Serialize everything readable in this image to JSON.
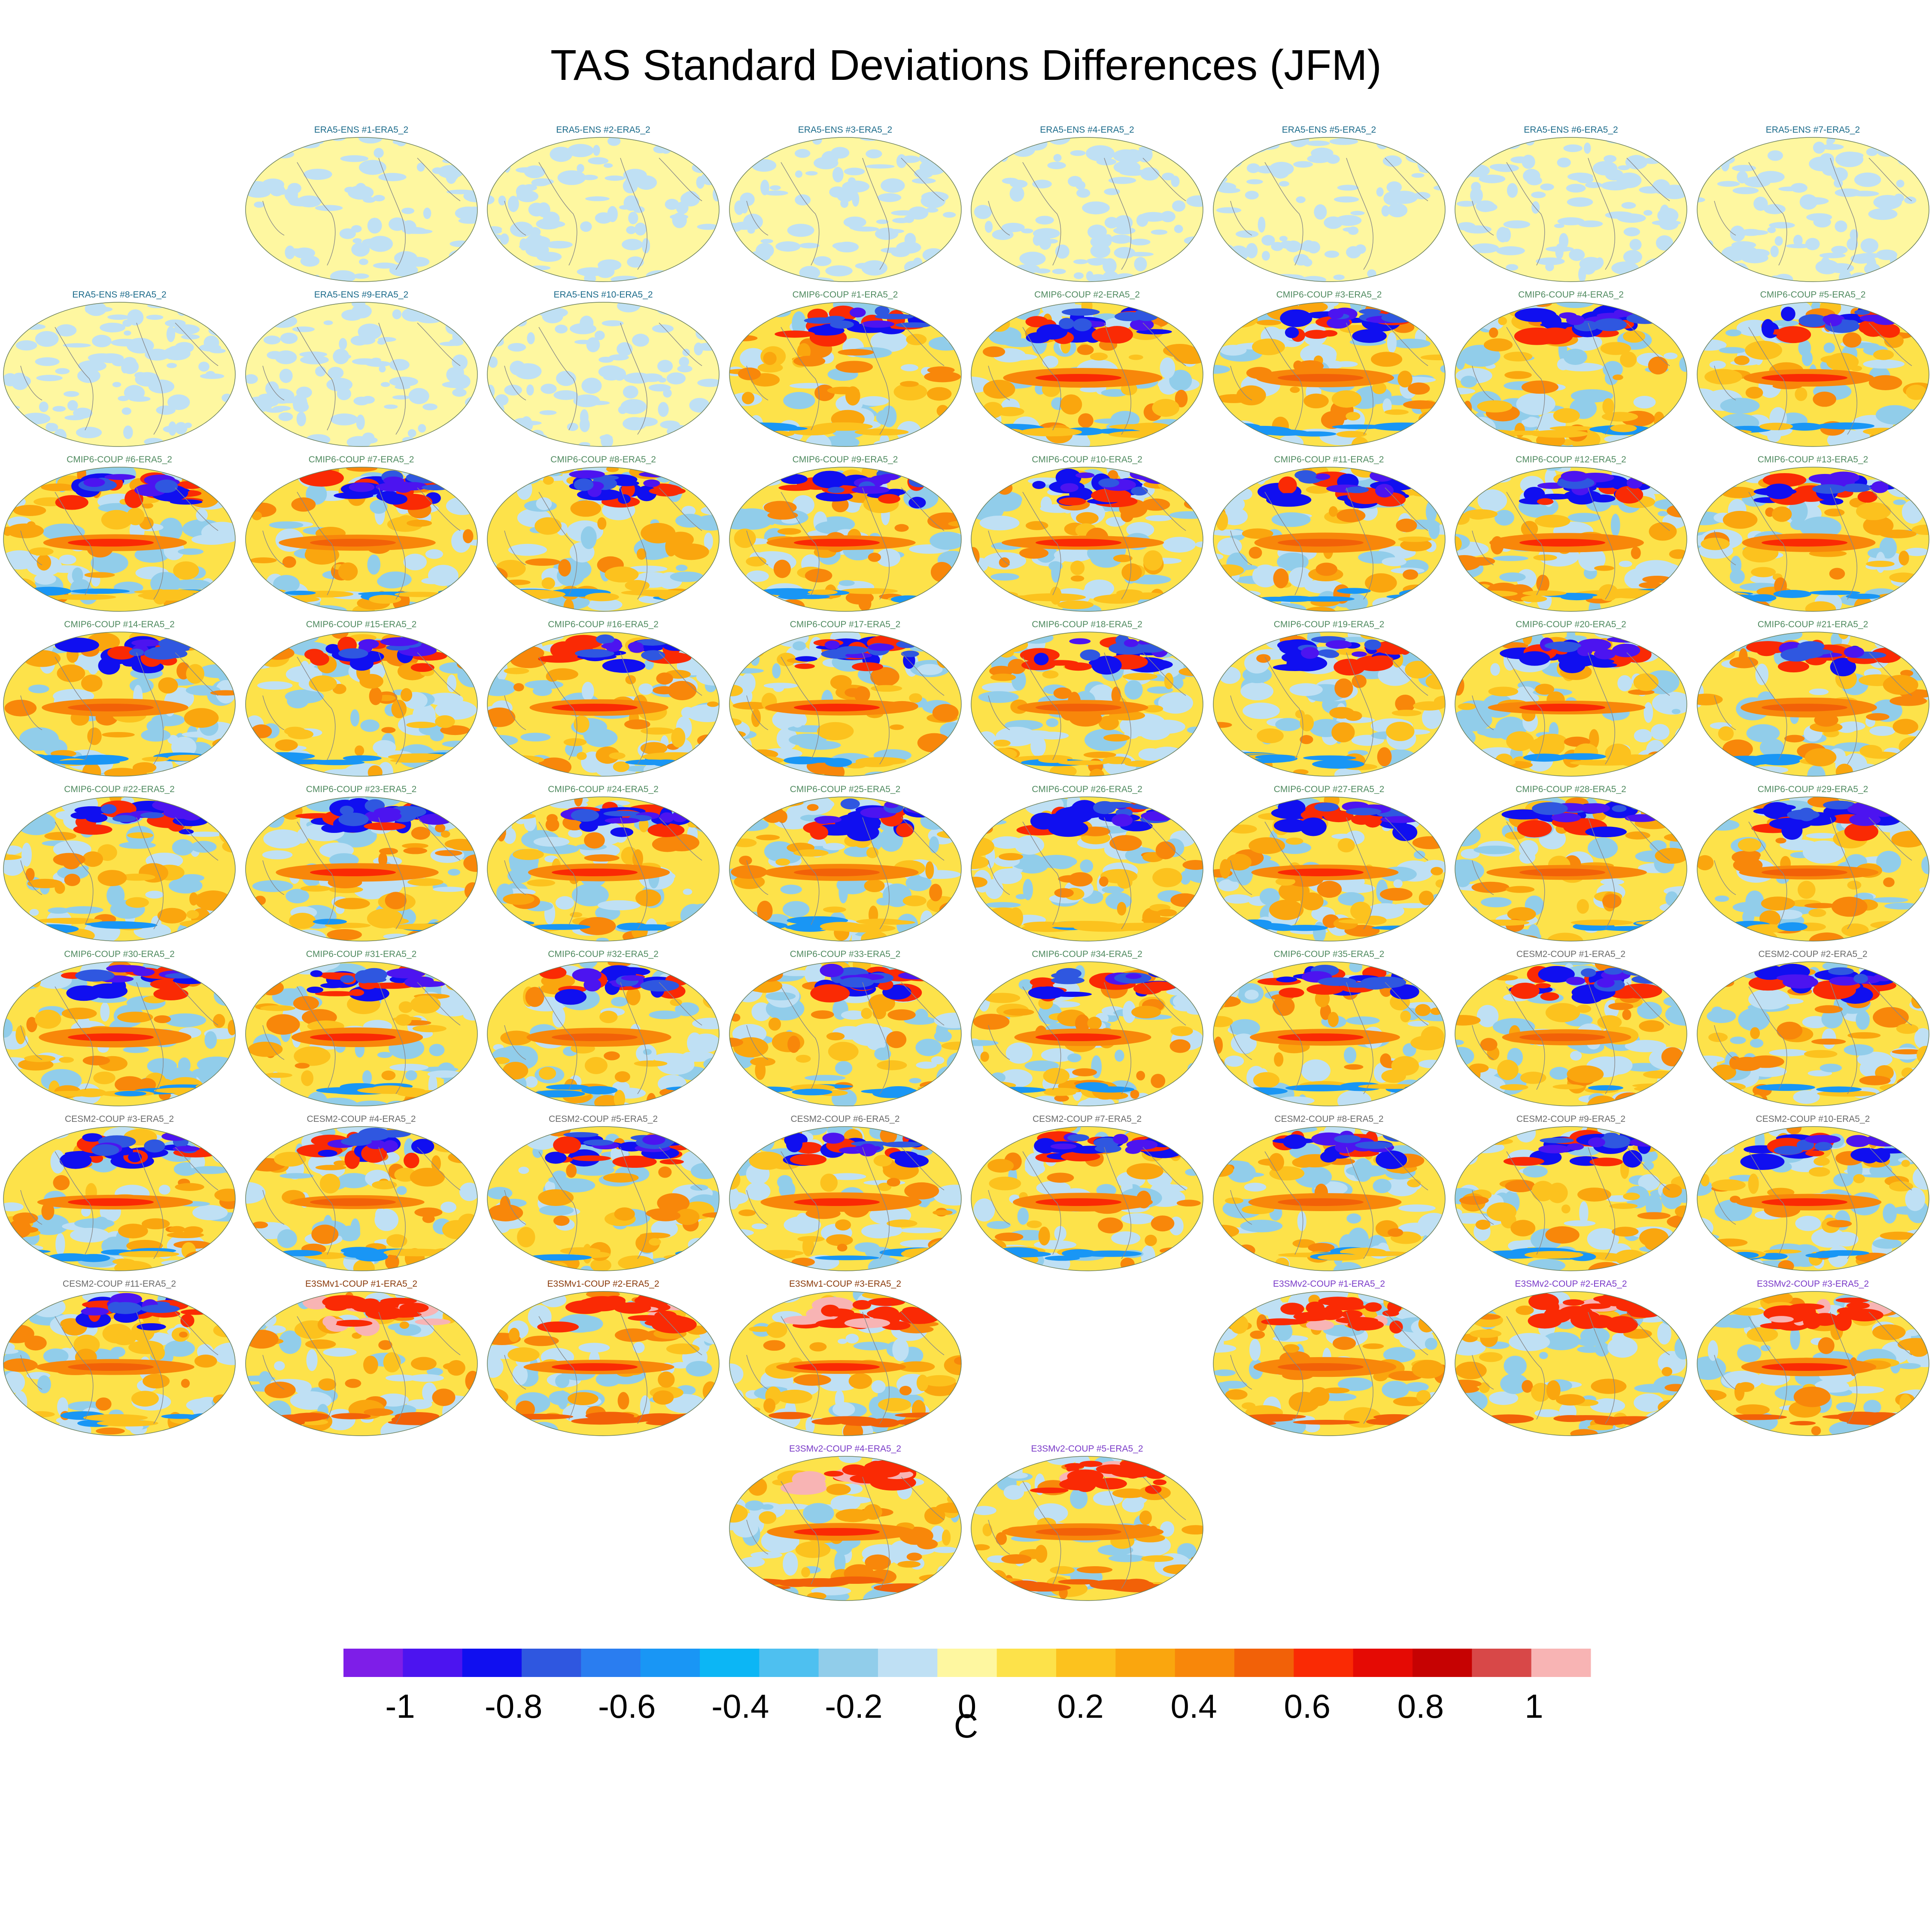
{
  "title": "TAS Standard Deviations Differences (JFM)",
  "colorbar": {
    "unit": "C",
    "ticks": [
      {
        "value": -1,
        "label": "-1"
      },
      {
        "value": -0.8,
        "label": "-0.8"
      },
      {
        "value": -0.6,
        "label": "-0.6"
      },
      {
        "value": -0.4,
        "label": "-0.4"
      },
      {
        "value": -0.2,
        "label": "-0.2"
      },
      {
        "value": 0,
        "label": "0"
      },
      {
        "value": 0.2,
        "label": "0.2"
      },
      {
        "value": 0.4,
        "label": "0.4"
      },
      {
        "value": 0.6,
        "label": "0.6"
      },
      {
        "value": 0.8,
        "label": "0.8"
      },
      {
        "value": 1,
        "label": "1"
      }
    ],
    "colors": [
      "#7e1ee8",
      "#4c14f0",
      "#100ff0",
      "#2f57e0",
      "#2a7df0",
      "#1996f5",
      "#0cb6f5",
      "#4ec0f0",
      "#91cdea",
      "#bfe0f4",
      "#fef7a0",
      "#fde24a",
      "#fcc21e",
      "#faa60e",
      "#f8870a",
      "#f26108",
      "#fa2a04",
      "#e50a04",
      "#c60202",
      "#d84848",
      "#f8b4b4"
    ],
    "range": [
      -1.1,
      1.1
    ]
  },
  "group_colors": {
    "ERA5-ENS": "#1a6a8a",
    "CMIP6-COUP": "#4f8a5f",
    "CESM2-COUP": "#6a6a6a",
    "E3SMv1-COUP": "#8a3a0a",
    "E3SMv2-COUP": "#7a3ac8"
  },
  "chart_data": {
    "type": "heatmap",
    "title": "TAS Standard Deviations Differences (JFM)",
    "colorbar_label": "C",
    "color_levels": [
      -1,
      -0.9,
      -0.8,
      -0.7,
      -0.6,
      -0.5,
      -0.4,
      -0.3,
      -0.2,
      -0.1,
      0,
      0.1,
      0.2,
      0.3,
      0.4,
      0.5,
      0.6,
      0.7,
      0.8,
      0.9,
      1
    ],
    "panels": [
      {
        "label": "ERA5-ENS    #1-ERA5_2",
        "group": "ERA5-ENS",
        "row": 0,
        "col": 1
      },
      {
        "label": "ERA5-ENS    #2-ERA5_2",
        "group": "ERA5-ENS",
        "row": 0,
        "col": 2
      },
      {
        "label": "ERA5-ENS    #3-ERA5_2",
        "group": "ERA5-ENS",
        "row": 0,
        "col": 3
      },
      {
        "label": "ERA5-ENS    #4-ERA5_2",
        "group": "ERA5-ENS",
        "row": 0,
        "col": 4
      },
      {
        "label": "ERA5-ENS    #5-ERA5_2",
        "group": "ERA5-ENS",
        "row": 0,
        "col": 5
      },
      {
        "label": "ERA5-ENS    #6-ERA5_2",
        "group": "ERA5-ENS",
        "row": 0,
        "col": 6
      },
      {
        "label": "ERA5-ENS    #7-ERA5_2",
        "group": "ERA5-ENS",
        "row": 0,
        "col": 7
      },
      {
        "label": "ERA5-ENS    #8-ERA5_2",
        "group": "ERA5-ENS",
        "row": 1,
        "col": 0
      },
      {
        "label": "ERA5-ENS    #9-ERA5_2",
        "group": "ERA5-ENS",
        "row": 1,
        "col": 1
      },
      {
        "label": "ERA5-ENS    #10-ERA5_2",
        "group": "ERA5-ENS",
        "row": 1,
        "col": 2
      },
      {
        "label": "CMIP6-COUP  #1-ERA5_2",
        "group": "CMIP6-COUP",
        "row": 1,
        "col": 3
      },
      {
        "label": "CMIP6-COUP  #2-ERA5_2",
        "group": "CMIP6-COUP",
        "row": 1,
        "col": 4
      },
      {
        "label": "CMIP6-COUP  #3-ERA5_2",
        "group": "CMIP6-COUP",
        "row": 1,
        "col": 5
      },
      {
        "label": "CMIP6-COUP  #4-ERA5_2",
        "group": "CMIP6-COUP",
        "row": 1,
        "col": 6
      },
      {
        "label": "CMIP6-COUP  #5-ERA5_2",
        "group": "CMIP6-COUP",
        "row": 1,
        "col": 7
      },
      {
        "label": "CMIP6-COUP  #6-ERA5_2",
        "group": "CMIP6-COUP",
        "row": 2,
        "col": 0
      },
      {
        "label": "CMIP6-COUP  #7-ERA5_2",
        "group": "CMIP6-COUP",
        "row": 2,
        "col": 1
      },
      {
        "label": "CMIP6-COUP  #8-ERA5_2",
        "group": "CMIP6-COUP",
        "row": 2,
        "col": 2
      },
      {
        "label": "CMIP6-COUP  #9-ERA5_2",
        "group": "CMIP6-COUP",
        "row": 2,
        "col": 3
      },
      {
        "label": "CMIP6-COUP  #10-ERA5_2",
        "group": "CMIP6-COUP",
        "row": 2,
        "col": 4
      },
      {
        "label": "CMIP6-COUP  #11-ERA5_2",
        "group": "CMIP6-COUP",
        "row": 2,
        "col": 5
      },
      {
        "label": "CMIP6-COUP  #12-ERA5_2",
        "group": "CMIP6-COUP",
        "row": 2,
        "col": 6
      },
      {
        "label": "CMIP6-COUP  #13-ERA5_2",
        "group": "CMIP6-COUP",
        "row": 2,
        "col": 7
      },
      {
        "label": "CMIP6-COUP  #14-ERA5_2",
        "group": "CMIP6-COUP",
        "row": 3,
        "col": 0
      },
      {
        "label": "CMIP6-COUP  #15-ERA5_2",
        "group": "CMIP6-COUP",
        "row": 3,
        "col": 1
      },
      {
        "label": "CMIP6-COUP  #16-ERA5_2",
        "group": "CMIP6-COUP",
        "row": 3,
        "col": 2
      },
      {
        "label": "CMIP6-COUP  #17-ERA5_2",
        "group": "CMIP6-COUP",
        "row": 3,
        "col": 3
      },
      {
        "label": "CMIP6-COUP  #18-ERA5_2",
        "group": "CMIP6-COUP",
        "row": 3,
        "col": 4
      },
      {
        "label": "CMIP6-COUP  #19-ERA5_2",
        "group": "CMIP6-COUP",
        "row": 3,
        "col": 5
      },
      {
        "label": "CMIP6-COUP  #20-ERA5_2",
        "group": "CMIP6-COUP",
        "row": 3,
        "col": 6
      },
      {
        "label": "CMIP6-COUP  #21-ERA5_2",
        "group": "CMIP6-COUP",
        "row": 3,
        "col": 7
      },
      {
        "label": "CMIP6-COUP  #22-ERA5_2",
        "group": "CMIP6-COUP",
        "row": 4,
        "col": 0
      },
      {
        "label": "CMIP6-COUP  #23-ERA5_2",
        "group": "CMIP6-COUP",
        "row": 4,
        "col": 1
      },
      {
        "label": "CMIP6-COUP  #24-ERA5_2",
        "group": "CMIP6-COUP",
        "row": 4,
        "col": 2
      },
      {
        "label": "CMIP6-COUP  #25-ERA5_2",
        "group": "CMIP6-COUP",
        "row": 4,
        "col": 3
      },
      {
        "label": "CMIP6-COUP  #26-ERA5_2",
        "group": "CMIP6-COUP",
        "row": 4,
        "col": 4
      },
      {
        "label": "CMIP6-COUP  #27-ERA5_2",
        "group": "CMIP6-COUP",
        "row": 4,
        "col": 5
      },
      {
        "label": "CMIP6-COUP  #28-ERA5_2",
        "group": "CMIP6-COUP",
        "row": 4,
        "col": 6
      },
      {
        "label": "CMIP6-COUP  #29-ERA5_2",
        "group": "CMIP6-COUP",
        "row": 4,
        "col": 7
      },
      {
        "label": "CMIP6-COUP  #30-ERA5_2",
        "group": "CMIP6-COUP",
        "row": 5,
        "col": 0
      },
      {
        "label": "CMIP6-COUP  #31-ERA5_2",
        "group": "CMIP6-COUP",
        "row": 5,
        "col": 1
      },
      {
        "label": "CMIP6-COUP  #32-ERA5_2",
        "group": "CMIP6-COUP",
        "row": 5,
        "col": 2
      },
      {
        "label": "CMIP6-COUP  #33-ERA5_2",
        "group": "CMIP6-COUP",
        "row": 5,
        "col": 3
      },
      {
        "label": "CMIP6-COUP  #34-ERA5_2",
        "group": "CMIP6-COUP",
        "row": 5,
        "col": 4
      },
      {
        "label": "CMIP6-COUP  #35-ERA5_2",
        "group": "CMIP6-COUP",
        "row": 5,
        "col": 5
      },
      {
        "label": "CESM2-COUP  #1-ERA5_2",
        "group": "CESM2-COUP",
        "row": 5,
        "col": 6
      },
      {
        "label": "CESM2-COUP  #2-ERA5_2",
        "group": "CESM2-COUP",
        "row": 5,
        "col": 7
      },
      {
        "label": "CESM2-COUP  #3-ERA5_2",
        "group": "CESM2-COUP",
        "row": 6,
        "col": 0
      },
      {
        "label": "CESM2-COUP  #4-ERA5_2",
        "group": "CESM2-COUP",
        "row": 6,
        "col": 1
      },
      {
        "label": "CESM2-COUP  #5-ERA5_2",
        "group": "CESM2-COUP",
        "row": 6,
        "col": 2
      },
      {
        "label": "CESM2-COUP  #6-ERA5_2",
        "group": "CESM2-COUP",
        "row": 6,
        "col": 3
      },
      {
        "label": "CESM2-COUP  #7-ERA5_2",
        "group": "CESM2-COUP",
        "row": 6,
        "col": 4
      },
      {
        "label": "CESM2-COUP  #8-ERA5_2",
        "group": "CESM2-COUP",
        "row": 6,
        "col": 5
      },
      {
        "label": "CESM2-COUP  #9-ERA5_2",
        "group": "CESM2-COUP",
        "row": 6,
        "col": 6
      },
      {
        "label": "CESM2-COUP  #10-ERA5_2",
        "group": "CESM2-COUP",
        "row": 6,
        "col": 7
      },
      {
        "label": "CESM2-COUP  #11-ERA5_2",
        "group": "CESM2-COUP",
        "row": 7,
        "col": 0
      },
      {
        "label": "E3SMv1-COUP #1-ERA5_2",
        "group": "E3SMv1-COUP",
        "row": 7,
        "col": 1
      },
      {
        "label": "E3SMv1-COUP #2-ERA5_2",
        "group": "E3SMv1-COUP",
        "row": 7,
        "col": 2
      },
      {
        "label": "E3SMv1-COUP #3-ERA5_2",
        "group": "E3SMv1-COUP",
        "row": 7,
        "col": 3
      },
      {
        "label": "E3SMv2-COUP #1-ERA5_2",
        "group": "E3SMv2-COUP",
        "row": 7,
        "col": 5
      },
      {
        "label": "E3SMv2-COUP #2-ERA5_2",
        "group": "E3SMv2-COUP",
        "row": 7,
        "col": 6
      },
      {
        "label": "E3SMv2-COUP #3-ERA5_2",
        "group": "E3SMv2-COUP",
        "row": 7,
        "col": 7
      },
      {
        "label": "E3SMv2-COUP #4-ERA5_2",
        "group": "E3SMv2-COUP",
        "row": 8,
        "col": 3
      },
      {
        "label": "E3SMv2-COUP #5-ERA5_2",
        "group": "E3SMv2-COUP",
        "row": 8,
        "col": 4
      }
    ]
  }
}
